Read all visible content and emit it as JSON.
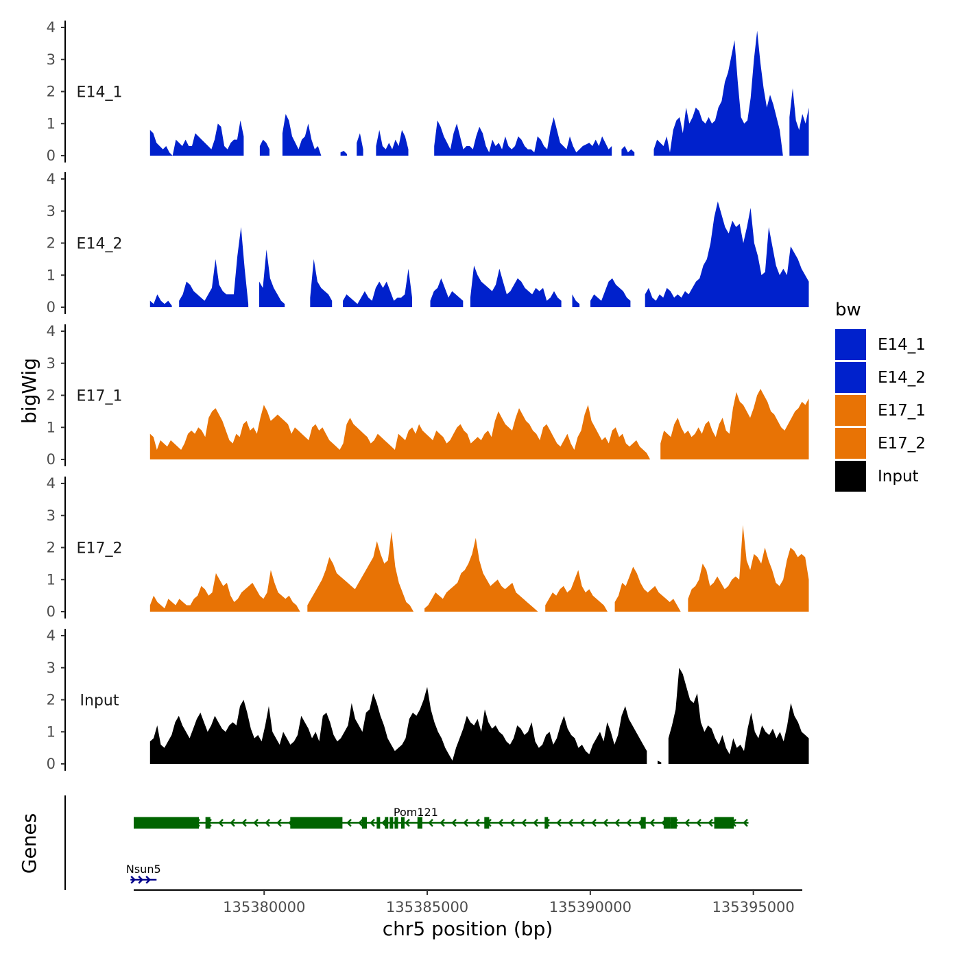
{
  "chart_data": {
    "type": "area",
    "x_data_range": [
      135376000,
      135396500
    ],
    "ylim": [
      0,
      4
    ],
    "yticks": [
      0,
      1,
      2,
      3,
      4
    ],
    "ylabel": "bigWig",
    "xlabel": "chr5 position (bp)",
    "xticks": [
      135380000,
      135385000,
      135390000,
      135395000
    ],
    "xtick_labels": [
      "135380000",
      "135385000",
      "135390000",
      "135395000"
    ],
    "genes_label": "Genes",
    "legend": {
      "title": "bw",
      "items": [
        {
          "label": "E14_1",
          "color": "#0021CC"
        },
        {
          "label": "E14_2",
          "color": "#0021CC"
        },
        {
          "label": "E17_1",
          "color": "#E87305"
        },
        {
          "label": "E17_2",
          "color": "#E87305"
        },
        {
          "label": "Input",
          "color": "#000000"
        }
      ]
    },
    "series": [
      {
        "name": "E14_1",
        "color": "#0021CC",
        "x_start": 135376500,
        "x_end": 135396700,
        "values": [
          0.8,
          0.7,
          0.4,
          0.3,
          0.2,
          0.3,
          0.1,
          0.0,
          0.5,
          0.4,
          0.3,
          0.5,
          0.3,
          0.3,
          0.7,
          0.6,
          0.5,
          0.4,
          0.3,
          0.2,
          0.5,
          1.0,
          0.9,
          0.3,
          0.2,
          0.4,
          0.5,
          0.5,
          1.1,
          0.6,
          null,
          null,
          null,
          null,
          0.3,
          0.5,
          0.4,
          0.2,
          null,
          null,
          null,
          0.7,
          1.3,
          1.1,
          0.6,
          0.4,
          0.2,
          0.5,
          0.6,
          1.0,
          0.5,
          0.2,
          0.3,
          0.0,
          null,
          null,
          null,
          null,
          null,
          0.1,
          0.15,
          0.05,
          null,
          null,
          0.4,
          0.7,
          0.2,
          null,
          null,
          null,
          0.3,
          0.8,
          0.3,
          0.2,
          0.4,
          0.2,
          0.5,
          0.3,
          0.8,
          0.6,
          0.2,
          null,
          null,
          null,
          null,
          null,
          null,
          null,
          0.3,
          1.1,
          0.9,
          0.6,
          0.4,
          0.2,
          0.7,
          1.0,
          0.6,
          0.2,
          0.3,
          0.3,
          0.2,
          0.6,
          0.9,
          0.7,
          0.3,
          0.1,
          0.5,
          0.3,
          0.4,
          0.2,
          0.6,
          0.3,
          0.2,
          0.3,
          0.6,
          0.5,
          0.3,
          0.2,
          0.2,
          0.1,
          0.6,
          0.5,
          0.3,
          0.2,
          0.8,
          1.2,
          0.8,
          0.4,
          0.3,
          0.2,
          0.6,
          0.3,
          0.1,
          0.2,
          0.3,
          0.35,
          0.4,
          0.3,
          0.5,
          0.3,
          0.6,
          0.4,
          0.2,
          0.3,
          null,
          null,
          0.2,
          0.3,
          0.1,
          0.2,
          0.1,
          null,
          null,
          null,
          null,
          null,
          0.2,
          0.5,
          0.4,
          0.3,
          0.6,
          0.1,
          0.8,
          1.1,
          1.2,
          0.7,
          1.5,
          1.0,
          1.2,
          1.5,
          1.4,
          1.1,
          1.0,
          1.2,
          1.0,
          1.1,
          1.5,
          1.7,
          2.3,
          2.6,
          3.1,
          3.6,
          2.3,
          1.2,
          1.0,
          1.1,
          1.8,
          3.0,
          3.9,
          2.9,
          2.1,
          1.5,
          1.9,
          1.6,
          1.2,
          0.8,
          0.0,
          null,
          1.2,
          2.1,
          1.1,
          0.8,
          1.3,
          1.0,
          1.5
        ]
      },
      {
        "name": "E14_2",
        "color": "#0021CC",
        "x_start": 135376500,
        "x_end": 135396700,
        "values": [
          0.2,
          0.1,
          0.4,
          0.2,
          0.1,
          0.2,
          0.05,
          null,
          0.2,
          0.4,
          0.8,
          0.7,
          0.5,
          0.4,
          0.3,
          0.2,
          0.4,
          0.6,
          1.5,
          0.7,
          0.5,
          0.4,
          0.4,
          0.4,
          1.6,
          2.5,
          1.2,
          0.1,
          null,
          null,
          0.8,
          0.6,
          1.8,
          0.9,
          0.6,
          0.4,
          0.2,
          0.1,
          null,
          null,
          null,
          null,
          null,
          null,
          0.3,
          1.5,
          0.8,
          0.6,
          0.5,
          0.4,
          0.2,
          null,
          null,
          0.2,
          0.4,
          0.3,
          0.2,
          0.1,
          0.3,
          0.5,
          0.3,
          0.2,
          0.6,
          0.8,
          0.6,
          0.8,
          0.5,
          0.2,
          0.3,
          0.3,
          0.4,
          1.2,
          0.3,
          null,
          null,
          null,
          null,
          0.2,
          0.5,
          0.6,
          0.9,
          0.6,
          0.3,
          0.5,
          0.4,
          0.3,
          0.2,
          null,
          0.3,
          1.3,
          1.0,
          0.8,
          0.7,
          0.6,
          0.5,
          0.7,
          1.2,
          0.8,
          0.4,
          0.5,
          0.7,
          0.9,
          0.8,
          0.6,
          0.5,
          0.4,
          0.6,
          0.5,
          0.6,
          0.2,
          0.3,
          0.5,
          0.3,
          0.2,
          null,
          null,
          0.4,
          0.2,
          0.1,
          null,
          null,
          0.2,
          0.4,
          0.3,
          0.2,
          0.5,
          0.8,
          0.9,
          0.7,
          0.6,
          0.5,
          0.3,
          0.2,
          null,
          null,
          null,
          0.4,
          0.6,
          0.3,
          0.2,
          0.4,
          0.3,
          0.6,
          0.5,
          0.3,
          0.4,
          0.3,
          0.5,
          0.4,
          0.6,
          0.8,
          0.9,
          1.3,
          1.5,
          2.0,
          2.8,
          3.3,
          2.9,
          2.5,
          2.3,
          2.7,
          2.5,
          2.6,
          2.0,
          2.5,
          3.1,
          2.0,
          1.6,
          1.0,
          1.1,
          2.5,
          1.9,
          1.3,
          1.0,
          1.2,
          1.0,
          1.9,
          1.7,
          1.5,
          1.2,
          1.0,
          0.8
        ]
      },
      {
        "name": "E17_1",
        "color": "#E87305",
        "x_start": 135376500,
        "x_end": 135396700,
        "values": [
          0.8,
          0.7,
          0.3,
          0.6,
          0.5,
          0.4,
          0.6,
          0.5,
          0.4,
          0.3,
          0.5,
          0.8,
          0.9,
          0.8,
          1.0,
          0.9,
          0.7,
          1.3,
          1.5,
          1.6,
          1.4,
          1.2,
          0.9,
          0.6,
          0.5,
          0.8,
          0.7,
          1.1,
          1.2,
          0.9,
          1.0,
          0.8,
          1.3,
          1.7,
          1.5,
          1.2,
          1.3,
          1.4,
          1.3,
          1.2,
          1.1,
          0.8,
          1.0,
          0.9,
          0.8,
          0.7,
          0.6,
          1.0,
          1.1,
          0.9,
          1.0,
          0.8,
          0.6,
          0.5,
          0.4,
          0.3,
          0.5,
          1.1,
          1.3,
          1.1,
          1.0,
          0.9,
          0.8,
          0.7,
          0.5,
          0.6,
          0.8,
          0.7,
          0.6,
          0.5,
          0.4,
          0.3,
          0.8,
          0.7,
          0.6,
          0.9,
          1.0,
          0.8,
          1.1,
          0.9,
          0.8,
          0.7,
          0.6,
          0.9,
          0.8,
          0.7,
          0.5,
          0.6,
          0.8,
          1.0,
          1.1,
          0.9,
          0.8,
          0.5,
          0.6,
          0.7,
          0.6,
          0.8,
          0.9,
          0.7,
          1.2,
          1.5,
          1.3,
          1.1,
          1.0,
          0.9,
          1.3,
          1.6,
          1.4,
          1.2,
          1.1,
          0.9,
          0.8,
          0.6,
          1.0,
          1.1,
          0.9,
          0.7,
          0.5,
          0.4,
          0.6,
          0.8,
          0.5,
          0.3,
          0.7,
          0.9,
          1.4,
          1.7,
          1.2,
          1.0,
          0.8,
          0.6,
          0.7,
          0.5,
          0.9,
          1.0,
          0.7,
          0.8,
          0.5,
          0.4,
          0.5,
          0.6,
          0.4,
          0.3,
          0.2,
          0.0,
          null,
          null,
          0.5,
          0.9,
          0.8,
          0.7,
          1.1,
          1.3,
          1.0,
          0.8,
          0.9,
          0.7,
          0.8,
          1.0,
          0.8,
          1.1,
          1.2,
          0.9,
          0.7,
          1.1,
          1.3,
          0.9,
          0.8,
          1.6,
          2.1,
          1.8,
          1.7,
          1.5,
          1.3,
          1.6,
          2.0,
          2.2,
          2.0,
          1.8,
          1.5,
          1.4,
          1.2,
          1.0,
          0.9,
          1.1,
          1.3,
          1.5,
          1.6,
          1.8,
          1.7,
          1.9
        ]
      },
      {
        "name": "E17_2",
        "color": "#E87305",
        "x_start": 135376500,
        "x_end": 135396700,
        "values": [
          0.2,
          0.5,
          0.3,
          0.2,
          0.1,
          0.4,
          0.3,
          0.2,
          0.4,
          0.3,
          0.2,
          0.2,
          0.4,
          0.5,
          0.8,
          0.7,
          0.5,
          0.6,
          1.2,
          1.0,
          0.8,
          0.9,
          0.5,
          0.3,
          0.4,
          0.6,
          0.7,
          0.8,
          0.9,
          0.7,
          0.5,
          0.4,
          0.6,
          1.3,
          0.9,
          0.6,
          0.5,
          0.4,
          0.5,
          0.3,
          0.2,
          0.0,
          null,
          0.2,
          0.4,
          0.6,
          0.8,
          1.0,
          1.3,
          1.7,
          1.5,
          1.2,
          1.1,
          1.0,
          0.9,
          0.8,
          0.7,
          0.9,
          1.1,
          1.3,
          1.5,
          1.7,
          2.2,
          1.8,
          1.5,
          1.6,
          2.5,
          1.4,
          0.9,
          0.6,
          0.3,
          0.2,
          0.0,
          null,
          null,
          0.1,
          0.2,
          0.4,
          0.6,
          0.5,
          0.4,
          0.6,
          0.7,
          0.8,
          0.9,
          1.2,
          1.3,
          1.5,
          1.8,
          2.3,
          1.6,
          1.2,
          1.0,
          0.8,
          0.9,
          1.0,
          0.8,
          0.7,
          0.8,
          0.9,
          0.6,
          0.5,
          0.4,
          0.3,
          0.2,
          0.1,
          0.0,
          null,
          0.2,
          0.4,
          0.6,
          0.5,
          0.7,
          0.8,
          0.6,
          0.7,
          1.0,
          1.3,
          0.8,
          0.6,
          0.7,
          0.5,
          0.4,
          0.3,
          0.2,
          0.0,
          null,
          0.3,
          0.5,
          0.9,
          0.8,
          1.1,
          1.4,
          1.2,
          0.9,
          0.7,
          0.6,
          0.7,
          0.8,
          0.6,
          0.5,
          0.4,
          0.3,
          0.4,
          0.2,
          0.0,
          null,
          0.4,
          0.7,
          0.8,
          1.0,
          1.5,
          1.3,
          0.8,
          0.9,
          1.1,
          0.9,
          0.7,
          0.8,
          1.0,
          1.1,
          1.0,
          2.7,
          1.6,
          1.3,
          1.8,
          1.7,
          1.5,
          2.0,
          1.6,
          1.3,
          0.9,
          0.8,
          1.0,
          1.6,
          2.0,
          1.9,
          1.7,
          1.8,
          1.7,
          1.0
        ]
      },
      {
        "name": "Input",
        "color": "#000000",
        "x_start": 135376500,
        "x_end": 135396700,
        "values": [
          0.7,
          0.8,
          1.2,
          0.6,
          0.5,
          0.7,
          0.9,
          1.3,
          1.5,
          1.2,
          1.0,
          0.8,
          1.1,
          1.4,
          1.6,
          1.3,
          1.0,
          1.2,
          1.5,
          1.3,
          1.1,
          1.0,
          1.2,
          1.3,
          1.2,
          1.8,
          2.0,
          1.6,
          1.1,
          0.8,
          0.9,
          0.7,
          1.2,
          1.8,
          1.0,
          0.8,
          0.6,
          1.0,
          0.8,
          0.6,
          0.7,
          0.9,
          1.5,
          1.3,
          1.1,
          0.8,
          1.0,
          0.7,
          1.5,
          1.6,
          1.3,
          0.9,
          0.7,
          0.8,
          1.0,
          1.2,
          1.9,
          1.4,
          1.2,
          1.0,
          1.6,
          1.7,
          2.2,
          1.9,
          1.5,
          1.2,
          0.8,
          0.6,
          0.4,
          0.5,
          0.6,
          0.8,
          1.4,
          1.6,
          1.5,
          1.7,
          2.0,
          2.4,
          1.7,
          1.3,
          1.0,
          0.8,
          0.5,
          0.3,
          0.1,
          0.5,
          0.8,
          1.1,
          1.5,
          1.3,
          1.2,
          1.4,
          1.0,
          1.7,
          1.3,
          1.1,
          1.2,
          1.0,
          0.9,
          0.7,
          0.6,
          0.8,
          1.2,
          1.1,
          0.9,
          1.0,
          1.3,
          0.7,
          0.5,
          0.6,
          0.9,
          1.0,
          0.6,
          0.8,
          1.2,
          1.5,
          1.1,
          0.9,
          0.8,
          0.5,
          0.6,
          0.4,
          0.3,
          0.6,
          0.8,
          1.0,
          0.7,
          1.3,
          1.0,
          0.6,
          0.9,
          1.5,
          1.8,
          1.4,
          1.2,
          1.0,
          0.8,
          0.6,
          0.4,
          null,
          null,
          0.1,
          0.05,
          null,
          0.8,
          1.2,
          1.7,
          3.0,
          2.8,
          2.4,
          2.0,
          1.9,
          2.2,
          1.3,
          1.0,
          1.2,
          1.1,
          0.8,
          0.6,
          0.9,
          0.5,
          0.3,
          0.8,
          0.5,
          0.6,
          0.4,
          1.1,
          1.6,
          1.0,
          0.8,
          1.2,
          1.0,
          0.9,
          1.1,
          0.8,
          1.0,
          0.7,
          1.2,
          1.9,
          1.5,
          1.3,
          1.0,
          0.9,
          0.8
        ]
      }
    ],
    "genes": [
      {
        "name": "Pom121",
        "strand": "-",
        "color": "#006400",
        "start": 135376000,
        "end": 135394850,
        "label_at": 135384650,
        "exons": [
          [
            135376000,
            135378000
          ],
          [
            135378200,
            135378350
          ],
          [
            135380800,
            135382400
          ],
          [
            135383000,
            135383150
          ],
          [
            135383450,
            135383550
          ],
          [
            135383700,
            135383800
          ],
          [
            135383850,
            135383950
          ],
          [
            135384000,
            135384100
          ],
          [
            135384200,
            135384300
          ],
          [
            135384700,
            135384850
          ],
          [
            135386750,
            135386900
          ],
          [
            135388600,
            135388700
          ],
          [
            135391550,
            135391700
          ],
          [
            135392250,
            135392450
          ],
          [
            135392450,
            135392650
          ],
          [
            135393800,
            135394400
          ]
        ]
      },
      {
        "name": "Nsun5",
        "strand": "+",
        "color": "#00008B",
        "start": 135375900,
        "end": 135376700,
        "label_at": 135376300,
        "exons": []
      }
    ]
  }
}
